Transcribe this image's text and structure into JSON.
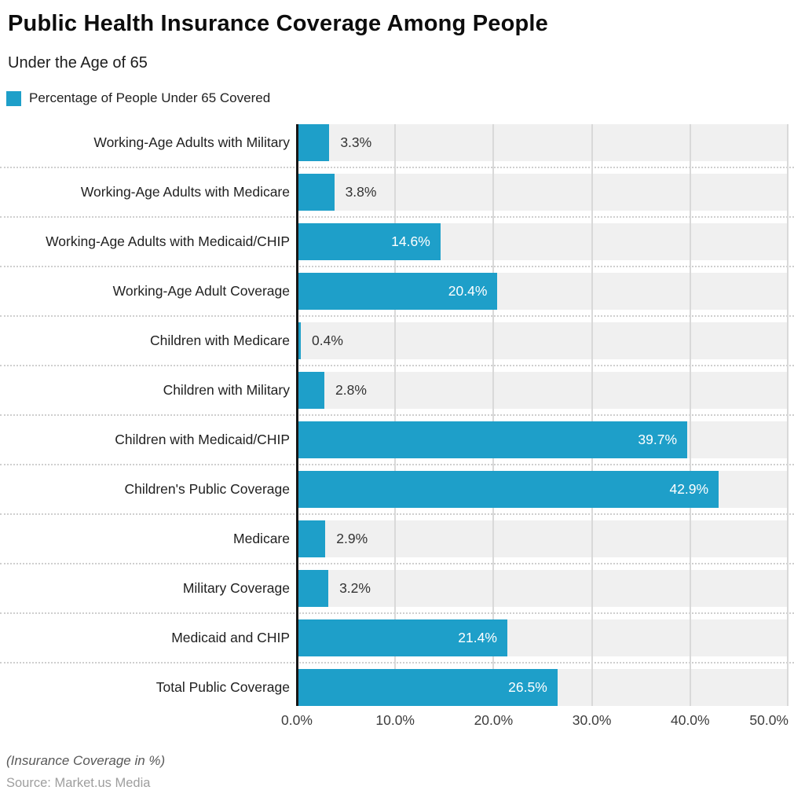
{
  "header": {
    "title": "Public Health Insurance Coverage Among People",
    "subtitle": "Under the Age of 65"
  },
  "legend": {
    "label": "Percentage of People Under 65 Covered",
    "swatch_color": "#1e9fc9"
  },
  "chart_data": {
    "type": "bar",
    "orientation": "horizontal",
    "series_name": "Percentage of People Under 65 Covered",
    "categories": [
      "Working-Age Adults with Military",
      "Working-Age Adults with Medicare",
      "Working-Age Adults with Medicaid/CHIP",
      "Working-Age Adult Coverage",
      "Children with Medicare",
      "Children with Military",
      "Children with Medicaid/CHIP",
      "Children's Public Coverage",
      "Medicare",
      "Military Coverage",
      "Medicaid and CHIP",
      "Total Public Coverage"
    ],
    "values": [
      3.3,
      3.8,
      14.6,
      20.4,
      0.4,
      2.8,
      39.7,
      42.9,
      2.9,
      3.2,
      21.4,
      26.5
    ],
    "value_labels": [
      "3.3%",
      "3.8%",
      "14.6%",
      "20.4%",
      "0.4%",
      "2.8%",
      "39.7%",
      "42.9%",
      "2.9%",
      "3.2%",
      "21.4%",
      "26.5%"
    ],
    "xlim": [
      0,
      50
    ],
    "x_ticks": [
      0,
      10,
      20,
      30,
      40,
      50
    ],
    "x_tick_labels": [
      "0.0%",
      "10.0%",
      "20.0%",
      "30.0%",
      "40.0%",
      "50.0%"
    ],
    "grid": "solid vertical gridlines every 10%, dotted horizontal row separators",
    "legend_position": "top-left",
    "bar_color": "#1e9fc9",
    "track_color": "#f0f0f0",
    "gridline_color": "#d9d9d9",
    "axis_line_color": "#161616"
  },
  "footer": {
    "note": "(Insurance Coverage in %)",
    "source": "Source: Market.us Media"
  }
}
